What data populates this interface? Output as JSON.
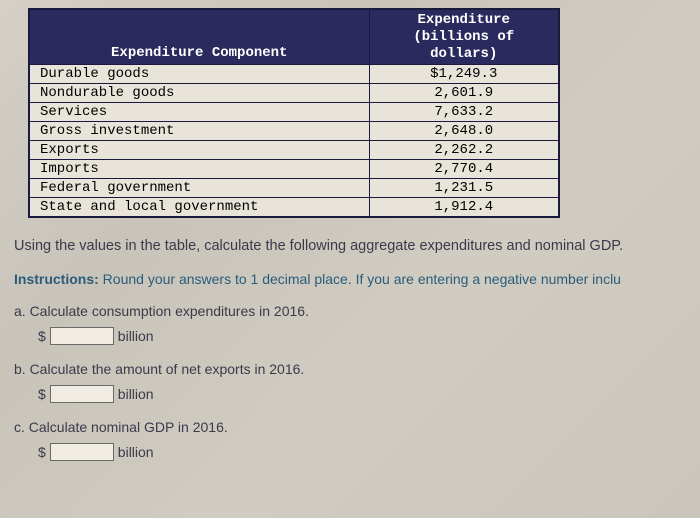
{
  "table": {
    "header_left": "Expenditure Component",
    "header_right": "Expenditure (billions of dollars)",
    "rows": [
      {
        "label": "Durable goods",
        "value": "$1,249.3"
      },
      {
        "label": "Nondurable goods",
        "value": "2,601.9"
      },
      {
        "label": "Services",
        "value": "7,633.2"
      },
      {
        "label": "Gross investment",
        "value": "2,648.0"
      },
      {
        "label": "Exports",
        "value": "2,262.2"
      },
      {
        "label": "Imports",
        "value": "2,770.4"
      },
      {
        "label": "Federal government",
        "value": "1,231.5"
      },
      {
        "label": "State and local government",
        "value": "1,912.4"
      }
    ],
    "header_bg": "#2a2a5e",
    "header_color": "#ffffff",
    "border_color": "#1a1a3e",
    "row_bg": "#e8e4da"
  },
  "lead_text": "Using the values in the table, calculate the following aggregate expenditures and nominal GDP.",
  "instructions_label": "Instructions:",
  "instructions_text": "Round your answers to 1 decimal place. If you are entering a negative number inclu",
  "questions": {
    "a": {
      "prompt": "a. Calculate consumption expenditures in 2016.",
      "prefix": "$",
      "suffix": "billion"
    },
    "b": {
      "prompt": "b. Calculate the amount of net exports in 2016.",
      "prefix": "$",
      "suffix": "billion"
    },
    "c": {
      "prompt": "c. Calculate nominal GDP in 2016.",
      "prefix": "$",
      "suffix": "billion"
    }
  }
}
